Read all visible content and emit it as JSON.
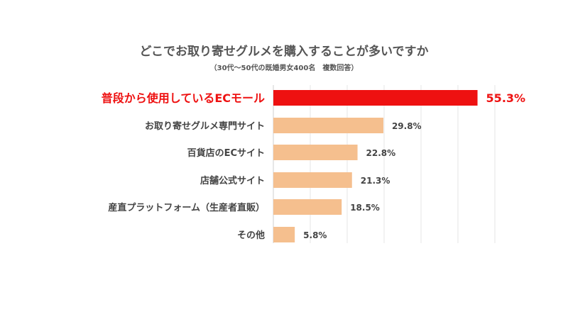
{
  "chart_data": {
    "type": "bar",
    "orientation": "horizontal",
    "title": "どこでお取り寄せグルメを購入することが多いですか",
    "subtitle": "（30代〜50代の既婚男女400名　複数回答）",
    "categories": [
      "普段から使用しているECモール",
      "お取り寄せグルメ専門サイト",
      "百貨店のECサイト",
      "店舗公式サイト",
      "産直プラットフォーム（生産者直販）",
      "その他"
    ],
    "values": [
      55.3,
      29.8,
      22.8,
      21.3,
      18.5,
      5.8
    ],
    "value_labels": [
      "55.3%",
      "29.8%",
      "22.8%",
      "21.3%",
      "18.5%",
      "5.8%"
    ],
    "unit": "%",
    "xlim": [
      0,
      60
    ],
    "grid": true,
    "highlight_index": 0,
    "colors": {
      "highlight": "#ee1111",
      "bar": "#f5bf8e",
      "label": "#444444",
      "title": "#555555",
      "grid": "#e6e6e6"
    }
  }
}
